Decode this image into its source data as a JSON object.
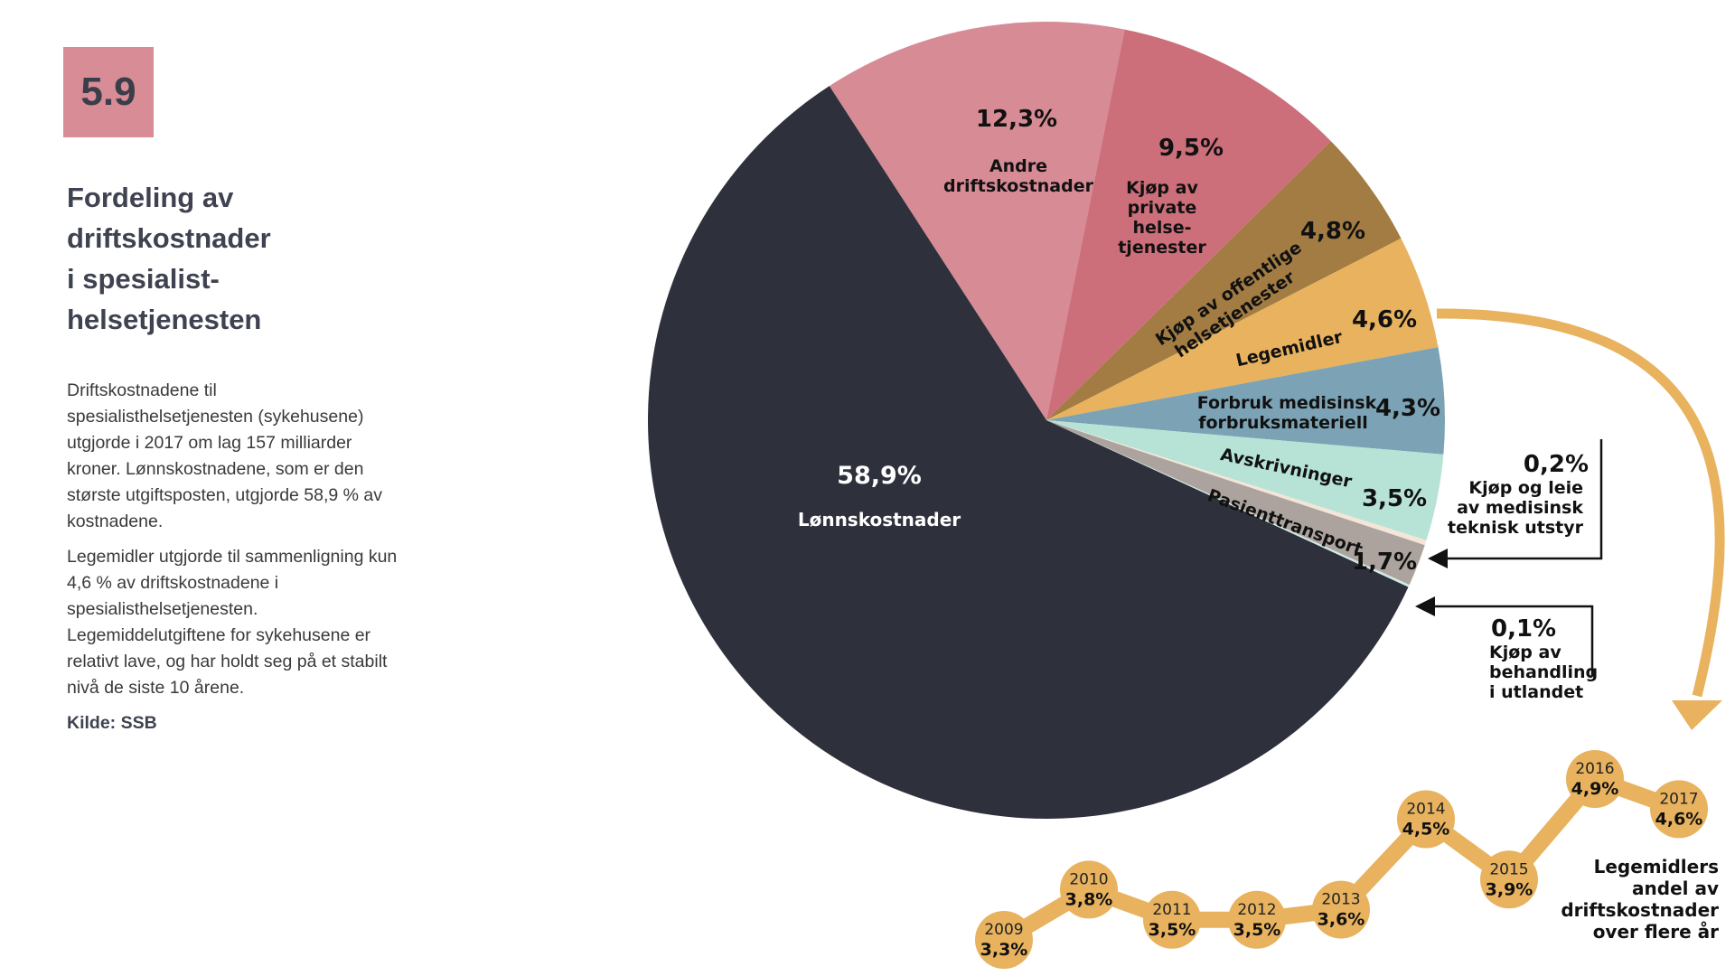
{
  "figure_number": "5.9",
  "title_lines": [
    "Fordeling av",
    "driftskostnader",
    "i spesialist-",
    "helsetjenesten"
  ],
  "body_paragraphs": [
    "Driftskostnadene til spesialisthelsetjenesten (sykehusene) utgjorde i 2017 om lag 157 milliarder kroner. Lønnskostnadene, som er den største utgiftsposten, utgjorde 58,9 % av kostnadene.",
    "Legemidler utgjorde til sammenligning kun 4,6 % av driftskostnadene i spesialisthelsetjenesten. Legemiddelutgiftene for sykehusene er relativt lave, og har holdt seg på et stabilt nivå de siste 10 årene."
  ],
  "source": "Kilde: SSB",
  "chart_data": [
    {
      "type": "pie",
      "slices": [
        {
          "label": "Andre driftskostnader",
          "value": 12.3,
          "value_label": "12,3%",
          "color": "#d68b95"
        },
        {
          "label": "Kjøp av private helse-tjenester",
          "value": 9.5,
          "value_label": "9,5%",
          "color": "#cc6f7a"
        },
        {
          "label": "Kjøp av offentlige helsetjenester",
          "value": 4.8,
          "value_label": "4,8%",
          "color": "#a27c42"
        },
        {
          "label": "Legemidler",
          "value": 4.6,
          "value_label": "4,6%",
          "color": "#e8b25e"
        },
        {
          "label": "Forbruk medisinsk forbruksmateriell",
          "value": 4.3,
          "value_label": "4,3%",
          "color": "#7ba3b5"
        },
        {
          "label": "Avskrivninger",
          "value": 3.5,
          "value_label": "3,5%",
          "color": "#b7e3d6"
        },
        {
          "label": "Kjøp og leie av medisinsk teknisk utstyr",
          "value": 0.2,
          "value_label": "0,2%",
          "color": "#f5e5d8"
        },
        {
          "label": "Pasienttransport",
          "value": 1.7,
          "value_label": "1,7%",
          "color": "#aca39e"
        },
        {
          "label": "Kjøp av behandling i utlandet",
          "value": 0.1,
          "value_label": "0,1%",
          "color": "#cfe9e3"
        },
        {
          "label": "Lønnskostnader",
          "value": 58.9,
          "value_label": "58,9%",
          "color": "#2e303b"
        }
      ],
      "callouts": [
        {
          "value_label": "0,2%",
          "lines": [
            "Kjøp og leie",
            "av medisinsk",
            "teknisk utstyr"
          ]
        },
        {
          "value_label": "0,1%",
          "lines": [
            "Kjøp av",
            "behandling",
            "i utlandet"
          ]
        }
      ]
    },
    {
      "type": "line",
      "title_lines": [
        "Legemidlers",
        "andel av",
        "driftskostnader",
        "over flere år"
      ],
      "x": [
        2009,
        2010,
        2011,
        2012,
        2013,
        2014,
        2015,
        2016,
        2017
      ],
      "values": [
        3.3,
        3.8,
        3.5,
        3.5,
        3.6,
        4.5,
        3.9,
        4.9,
        4.6
      ],
      "value_labels": [
        "3,3%",
        "3,8%",
        "3,5%",
        "3,5%",
        "3,6%",
        "4,5%",
        "3,9%",
        "4,9%",
        "4,6%"
      ],
      "color": "#e8b25e"
    }
  ]
}
